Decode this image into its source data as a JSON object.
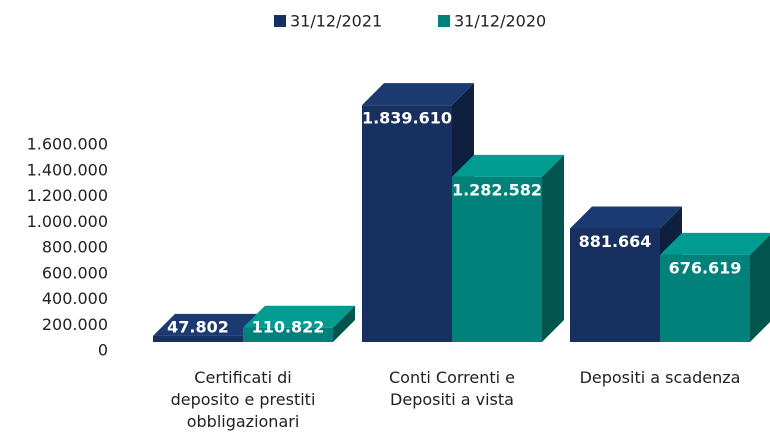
{
  "chart_data": {
    "type": "bar3d",
    "categories": [
      "Certificati di deposito e prestiti obbligazionari",
      "Conti Correnti e Depositi a vista",
      "Depositi a scadenza"
    ],
    "series": [
      {
        "name": "31/12/2021",
        "color": "#17305f",
        "values": [
          47802,
          1839610,
          881664
        ],
        "value_labels": [
          "47.802",
          "1.839.610",
          "881.664"
        ]
      },
      {
        "name": "31/12/2020",
        "color": "#00827a",
        "values": [
          110822,
          1282582,
          676619
        ],
        "value_labels": [
          "110.822",
          "1.282.582",
          "676.619"
        ]
      }
    ],
    "ylim": [
      0,
      1600000
    ],
    "yticks": [
      {
        "value": 0,
        "label": "0"
      },
      {
        "value": 200000,
        "label": "200.000"
      },
      {
        "value": 400000,
        "label": "400.000"
      },
      {
        "value": 600000,
        "label": "600.000"
      },
      {
        "value": 800000,
        "label": "800.000"
      },
      {
        "value": 1000000,
        "label": "1.000.000"
      },
      {
        "value": 1200000,
        "label": "1.200.000"
      },
      {
        "value": 1400000,
        "label": "1.400.000"
      },
      {
        "value": 1600000,
        "label": "1.600.000"
      }
    ],
    "legend": "top"
  }
}
